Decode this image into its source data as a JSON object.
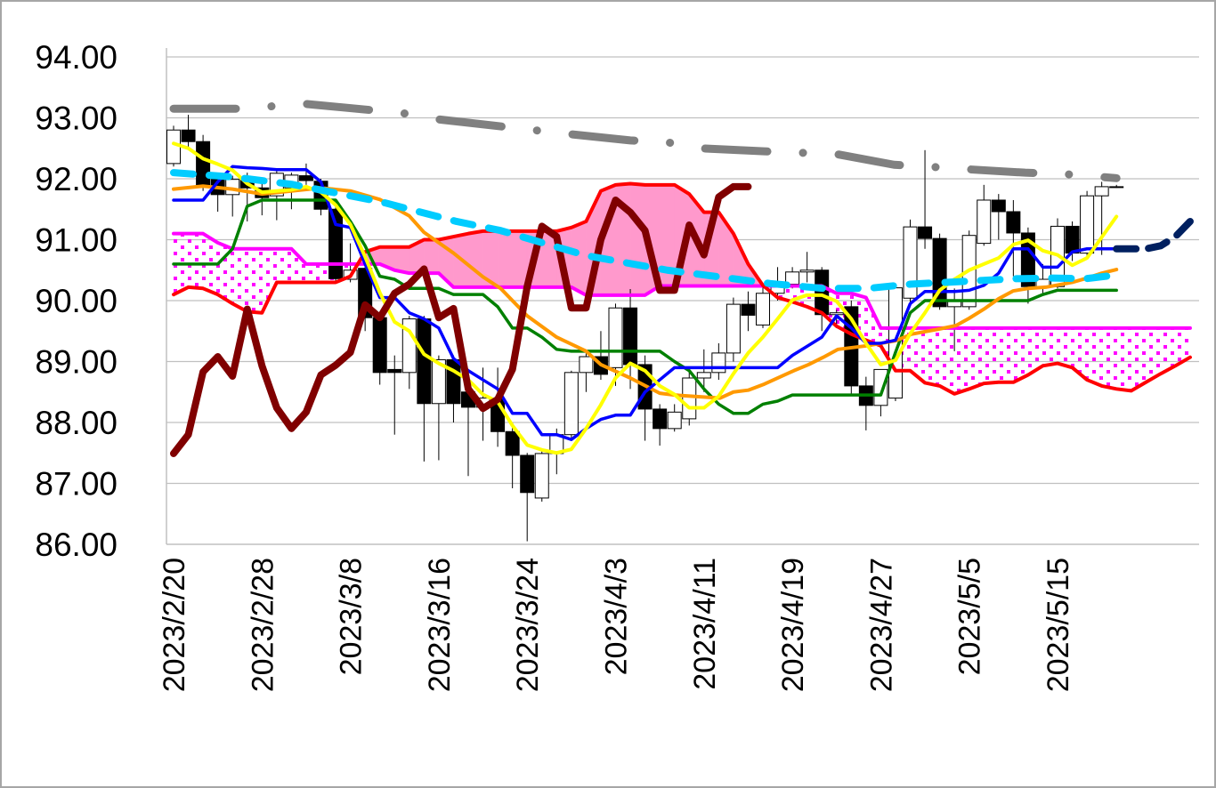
{
  "chart_data": {
    "type": "candlestick-ichimoku",
    "title": "",
    "xlabel": "",
    "ylabel": "",
    "ylim": [
      86,
      94
    ],
    "y_ticks": [
      "86.00",
      "87.00",
      "88.00",
      "89.00",
      "90.00",
      "91.00",
      "92.00",
      "93.00",
      "94.00"
    ],
    "x_tick_labels": [
      {
        "index": 0,
        "label": "2023/2/20"
      },
      {
        "index": 6,
        "label": "2023/2/28"
      },
      {
        "index": 12,
        "label": "2023/3/8"
      },
      {
        "index": 18,
        "label": "2023/3/16"
      },
      {
        "index": 24,
        "label": "2023/3/24"
      },
      {
        "index": 30,
        "label": "2023/4/3"
      },
      {
        "index": 36,
        "label": "2023/4/11"
      },
      {
        "index": 42,
        "label": "2023/4/19"
      },
      {
        "index": 48,
        "label": "2023/4/27"
      },
      {
        "index": 54,
        "label": "2023/5/5"
      },
      {
        "index": 60,
        "label": "2023/5/15"
      }
    ],
    "category_count": 70,
    "grid": true,
    "candles_ohlc": [
      [
        92.25,
        92.87,
        92.2,
        92.8
      ],
      [
        92.8,
        93.05,
        92.48,
        92.61
      ],
      [
        92.61,
        92.72,
        91.8,
        91.87
      ],
      [
        91.99,
        92.05,
        91.46,
        91.74
      ],
      [
        91.74,
        92.05,
        91.38,
        91.99
      ],
      [
        92.0,
        92.1,
        91.3,
        91.85
      ],
      [
        91.85,
        92.0,
        91.4,
        91.69
      ],
      [
        91.72,
        92.15,
        91.32,
        92.09
      ],
      [
        91.85,
        92.1,
        91.5,
        92.06
      ],
      [
        92.05,
        92.25,
        91.9,
        91.97
      ],
      [
        91.96,
        92.0,
        91.4,
        91.5
      ],
      [
        91.5,
        91.6,
        90.3,
        90.36
      ],
      [
        90.35,
        90.94,
        90.3,
        90.5
      ],
      [
        90.53,
        90.6,
        89.5,
        89.72
      ],
      [
        89.72,
        89.8,
        88.62,
        88.82
      ],
      [
        88.87,
        89.1,
        87.8,
        88.82
      ],
      [
        88.82,
        89.75,
        88.55,
        89.7
      ],
      [
        89.7,
        89.75,
        87.36,
        88.31
      ],
      [
        88.31,
        89.1,
        87.38,
        89.03
      ],
      [
        89.03,
        89.1,
        88.0,
        88.31
      ],
      [
        88.5,
        88.6,
        87.12,
        88.25
      ],
      [
        88.25,
        88.9,
        87.7,
        88.4
      ],
      [
        88.38,
        88.9,
        87.6,
        87.85
      ],
      [
        87.85,
        88.0,
        86.92,
        87.46
      ],
      [
        87.46,
        87.5,
        86.05,
        86.85
      ],
      [
        86.76,
        87.55,
        86.7,
        87.49
      ],
      [
        87.49,
        87.9,
        87.15,
        87.8
      ],
      [
        87.8,
        88.85,
        87.7,
        88.82
      ],
      [
        88.82,
        89.15,
        88.5,
        89.08
      ],
      [
        89.08,
        89.5,
        88.7,
        88.79
      ],
      [
        88.9,
        89.95,
        88.6,
        89.88
      ],
      [
        89.88,
        90.19,
        88.55,
        88.95
      ],
      [
        88.95,
        89.1,
        87.7,
        88.22
      ],
      [
        88.22,
        88.3,
        87.62,
        87.9
      ],
      [
        87.9,
        88.3,
        87.85,
        88.17
      ],
      [
        88.06,
        88.9,
        87.95,
        88.73
      ],
      [
        88.73,
        89.2,
        88.5,
        88.82
      ],
      [
        88.82,
        89.3,
        88.7,
        89.14
      ],
      [
        89.14,
        90.05,
        89.0,
        89.94
      ],
      [
        89.94,
        90.15,
        89.5,
        89.76
      ],
      [
        89.6,
        90.25,
        89.55,
        90.12
      ],
      [
        90.12,
        90.55,
        90.0,
        90.27
      ],
      [
        90.27,
        90.55,
        90.2,
        90.47
      ],
      [
        90.47,
        90.8,
        90.3,
        90.5
      ],
      [
        90.5,
        90.55,
        89.5,
        89.77
      ],
      [
        89.77,
        89.85,
        89.55,
        89.8
      ],
      [
        89.9,
        90.0,
        88.45,
        88.6
      ],
      [
        88.6,
        88.75,
        87.87,
        88.28
      ],
      [
        88.28,
        88.87,
        88.1,
        88.87
      ],
      [
        88.4,
        90.25,
        88.35,
        90.21
      ],
      [
        90.04,
        91.33,
        89.9,
        91.21
      ],
      [
        91.21,
        92.47,
        90.85,
        91.02
      ],
      [
        91.02,
        91.1,
        89.85,
        89.9
      ],
      [
        89.9,
        90.2,
        89.17,
        90.0
      ],
      [
        89.9,
        91.15,
        89.85,
        91.07
      ],
      [
        90.94,
        91.9,
        90.9,
        91.65
      ],
      [
        91.65,
        91.75,
        91.0,
        91.46
      ],
      [
        91.46,
        91.65,
        90.4,
        91.11
      ],
      [
        91.11,
        91.2,
        89.95,
        90.23
      ],
      [
        90.23,
        90.6,
        90.1,
        90.35
      ],
      [
        90.23,
        91.35,
        90.2,
        91.22
      ],
      [
        91.22,
        91.3,
        90.65,
        90.78
      ],
      [
        90.78,
        91.8,
        90.7,
        91.72
      ],
      [
        91.72,
        91.95,
        90.75,
        91.87
      ],
      [
        91.87,
        91.9,
        91.85,
        91.87
      ]
    ],
    "series": [
      {
        "name": "tenkan",
        "color": "#0000FF",
        "start": 0,
        "values": [
          91.65,
          91.65,
          91.65,
          91.95,
          92.2,
          92.18,
          92.17,
          92.15,
          92.15,
          92.15,
          91.95,
          91.25,
          91.2,
          90.6,
          90.05,
          90.05,
          89.8,
          89.7,
          89.55,
          89.05,
          88.85,
          88.7,
          88.55,
          88.15,
          88.15,
          87.8,
          87.8,
          87.72,
          87.9,
          88.05,
          88.12,
          88.12,
          88.5,
          88.7,
          88.9,
          88.9,
          88.9,
          88.9,
          88.9,
          88.9,
          88.9,
          88.9,
          89.1,
          89.25,
          89.4,
          89.75,
          89.55,
          89.3,
          89.3,
          89.35,
          89.95,
          90.15,
          90.15,
          90.15,
          90.17,
          90.25,
          90.45,
          90.85,
          90.85,
          90.55,
          90.55,
          90.8,
          90.85,
          90.85,
          90.85
        ]
      },
      {
        "name": "tenkan-projection",
        "color": "#002060",
        "start": 64,
        "dashed": true,
        "values": [
          90.85,
          90.85,
          90.85,
          90.9,
          91.05,
          91.3
        ]
      },
      {
        "name": "kijun",
        "color": "#008000",
        "start": 0,
        "values": [
          90.6,
          90.6,
          90.6,
          90.6,
          90.85,
          91.55,
          91.65,
          91.65,
          91.65,
          91.65,
          91.65,
          91.65,
          91.3,
          90.9,
          90.4,
          90.35,
          90.2,
          90.2,
          90.2,
          90.1,
          90.1,
          90.1,
          89.9,
          89.55,
          89.55,
          89.4,
          89.2,
          89.17,
          89.17,
          89.17,
          89.17,
          89.17,
          89.17,
          89.17,
          89.0,
          88.85,
          88.55,
          88.3,
          88.15,
          88.15,
          88.3,
          88.35,
          88.45,
          88.45,
          88.45,
          88.45,
          88.45,
          88.45,
          88.45,
          89.15,
          89.8,
          90.0,
          90.0,
          90.0,
          90.0,
          90.0,
          90.0,
          90.0,
          90.0,
          90.1,
          90.17,
          90.17,
          90.17,
          90.17,
          90.17
        ]
      },
      {
        "name": "senkou-span-a",
        "color": "#FF0000",
        "start": 0,
        "values": [
          90.1,
          90.22,
          90.2,
          90.1,
          89.95,
          89.82,
          89.8,
          90.3,
          90.3,
          90.3,
          90.3,
          90.3,
          90.4,
          90.8,
          90.88,
          90.88,
          90.88,
          91.0,
          91.0,
          91.05,
          91.1,
          91.14,
          91.14,
          91.14,
          91.14,
          91.14,
          91.14,
          91.2,
          91.3,
          91.8,
          91.9,
          91.92,
          91.9,
          91.9,
          91.9,
          91.75,
          91.45,
          91.45,
          91.1,
          90.6,
          90.25,
          90.05,
          89.98,
          89.9,
          89.8,
          89.58,
          89.45,
          89.35,
          89.26,
          88.85,
          88.85,
          88.65,
          88.6,
          88.47,
          88.55,
          88.64,
          88.66,
          88.66,
          88.78,
          88.93,
          88.97,
          88.9,
          88.7,
          88.6,
          88.55,
          88.52,
          88.66,
          88.8,
          88.93,
          89.07
        ]
      },
      {
        "name": "senkou-span-b",
        "color": "#FF00FF",
        "start": 0,
        "values": [
          91.1,
          91.1,
          91.1,
          90.95,
          90.85,
          90.85,
          90.85,
          90.85,
          90.85,
          90.6,
          90.6,
          90.6,
          90.6,
          90.6,
          90.6,
          90.5,
          90.45,
          90.45,
          90.45,
          90.22,
          90.22,
          90.22,
          90.22,
          90.22,
          90.22,
          90.22,
          90.22,
          90.22,
          90.09,
          90.09,
          90.09,
          90.09,
          90.09,
          90.24,
          90.24,
          90.24,
          90.24,
          90.24,
          90.24,
          90.24,
          90.24,
          90.24,
          90.24,
          90.24,
          90.24,
          90.12,
          90.12,
          90.05,
          89.55,
          89.55,
          89.55,
          89.55,
          89.55,
          89.55,
          89.55,
          89.55,
          89.55,
          89.55,
          89.55,
          89.55,
          89.55,
          89.55,
          89.55,
          89.55,
          89.55,
          89.55,
          89.55,
          89.55,
          89.55,
          89.55
        ]
      },
      {
        "name": "chikou",
        "color": "#800000",
        "start": 0,
        "values": [
          87.49,
          87.8,
          88.83,
          89.08,
          88.76,
          89.86,
          88.93,
          88.24,
          87.9,
          88.17,
          88.78,
          88.94,
          89.15,
          89.93,
          89.72,
          90.12,
          90.27,
          90.52,
          89.72,
          89.87,
          88.55,
          88.23,
          88.38,
          88.87,
          90.23,
          91.22,
          91.05,
          89.88,
          89.88,
          91.0,
          91.65,
          91.45,
          91.15,
          90.17,
          90.17,
          91.24,
          90.75,
          91.7,
          91.87,
          91.87
        ]
      },
      {
        "name": "yellow-line",
        "color": "#FFFF00",
        "start": 0,
        "values": [
          92.58,
          92.5,
          92.33,
          92.24,
          92.14,
          91.92,
          91.78,
          91.8,
          91.82,
          91.87,
          91.78,
          91.57,
          91.25,
          90.72,
          90.13,
          89.65,
          89.5,
          89.12,
          88.97,
          88.85,
          88.7,
          88.46,
          88.34,
          87.95,
          87.63,
          87.55,
          87.5,
          87.56,
          87.9,
          88.29,
          88.73,
          88.97,
          88.85,
          88.6,
          88.46,
          88.24,
          88.24,
          88.43,
          88.8,
          89.14,
          89.4,
          89.7,
          90.01,
          90.09,
          90.09,
          89.99,
          89.7,
          89.3,
          88.95,
          89.02,
          89.46,
          89.8,
          90.17,
          90.35,
          90.5,
          90.6,
          90.7,
          90.92,
          90.99,
          90.82,
          90.75,
          90.58,
          90.7,
          91.04,
          91.38
        ]
      },
      {
        "name": "orange-line",
        "color": "#FF9900",
        "points": [
          [
            0,
            91.83
          ],
          [
            2,
            91.88
          ],
          [
            4,
            91.83
          ],
          [
            6,
            91.75
          ],
          [
            8,
            91.8
          ],
          [
            10,
            91.85
          ],
          [
            12,
            91.8
          ],
          [
            14,
            91.66
          ],
          [
            16,
            91.39
          ],
          [
            17,
            91.12
          ],
          [
            19,
            90.78
          ],
          [
            21,
            90.39
          ],
          [
            22.2,
            90.2
          ],
          [
            24,
            89.75
          ],
          [
            26,
            89.4
          ],
          [
            28,
            89.17
          ],
          [
            29,
            88.95
          ],
          [
            31,
            88.73
          ],
          [
            33,
            88.48
          ],
          [
            34,
            88.45
          ],
          [
            37.1,
            88.4
          ],
          [
            38,
            88.5
          ],
          [
            39,
            88.53
          ],
          [
            40.1,
            88.63
          ],
          [
            42.1,
            88.85
          ],
          [
            43.1,
            88.95
          ],
          [
            44.1,
            89.07
          ],
          [
            45.1,
            89.2
          ],
          [
            47.1,
            89.26
          ],
          [
            49,
            89.34
          ],
          [
            50.1,
            89.45
          ],
          [
            52.1,
            89.54
          ],
          [
            53.1,
            89.59
          ],
          [
            54,
            89.71
          ],
          [
            55,
            89.86
          ],
          [
            56,
            90.03
          ],
          [
            57,
            90.16
          ],
          [
            58,
            90.2
          ],
          [
            59.2,
            90.22
          ],
          [
            61,
            90.3
          ],
          [
            62,
            90.37
          ],
          [
            63,
            90.45
          ],
          [
            64,
            90.51
          ]
        ]
      },
      {
        "name": "light-blue-dashed",
        "color": "#00CCFF",
        "dashed": true,
        "points": [
          [
            0,
            92.1
          ],
          [
            4,
            92.03
          ],
          [
            8,
            91.91
          ],
          [
            14.1,
            91.62
          ],
          [
            19.2,
            91.3
          ],
          [
            22.2,
            91.15
          ],
          [
            28,
            90.74
          ],
          [
            33.5,
            90.5
          ],
          [
            38.3,
            90.35
          ],
          [
            40.5,
            90.28
          ],
          [
            44.1,
            90.2
          ],
          [
            47.1,
            90.2
          ],
          [
            50,
            90.27
          ],
          [
            52.4,
            90.3
          ],
          [
            54.8,
            90.33
          ],
          [
            57.2,
            90.36
          ],
          [
            59.6,
            90.37
          ],
          [
            61.9,
            90.36
          ],
          [
            64,
            90.42
          ]
        ]
      },
      {
        "name": "gray-dash-dot",
        "color": "#808080",
        "dashed": true,
        "points": [
          [
            0,
            93.15
          ],
          [
            4.5,
            93.15
          ],
          [
            8.9,
            93.23
          ],
          [
            13.3,
            93.13
          ],
          [
            15.5,
            93.08
          ],
          [
            17.8,
            92.98
          ],
          [
            22.2,
            92.86
          ],
          [
            26.6,
            92.74
          ],
          [
            31,
            92.63
          ],
          [
            33.5,
            92.6
          ],
          [
            35.7,
            92.5
          ],
          [
            40.1,
            92.45
          ],
          [
            42.3,
            92.43
          ],
          [
            45.1,
            92.4
          ],
          [
            48.9,
            92.23
          ],
          [
            51.2,
            92.2
          ],
          [
            53.6,
            92.16
          ],
          [
            57.8,
            92.1
          ],
          [
            60.3,
            92.08
          ],
          [
            64,
            92.01
          ]
        ]
      }
    ],
    "cloud": {
      "bullish_fill": "#FF99CC",
      "bearish_fill": "#FF00FF"
    },
    "legend": "none"
  }
}
